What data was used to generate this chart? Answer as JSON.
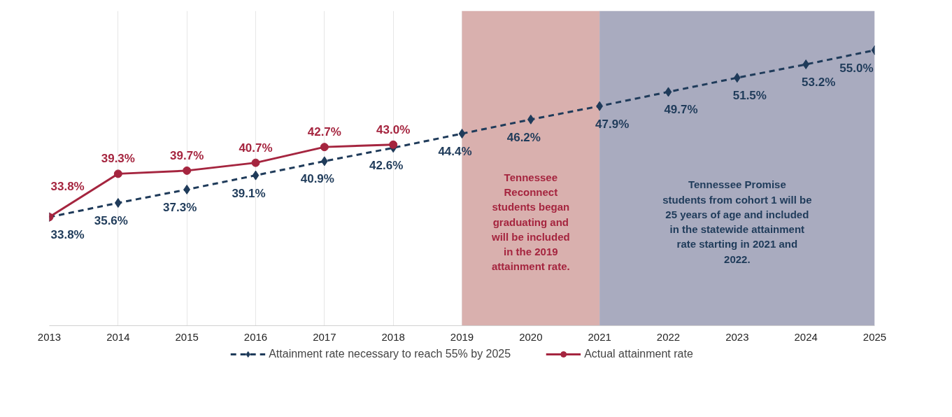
{
  "chart_data": {
    "type": "line",
    "x": [
      2013,
      2014,
      2015,
      2016,
      2017,
      2018,
      2019,
      2020,
      2021,
      2022,
      2023,
      2024,
      2025
    ],
    "series": [
      {
        "name": "Attainment rate necessary to reach 55% by 2025",
        "color": "#1f3b5a",
        "marker": "diamond",
        "line_style": "dashed",
        "values": [
          33.8,
          35.6,
          37.3,
          39.1,
          40.9,
          42.6,
          44.4,
          46.2,
          47.9,
          49.7,
          51.5,
          53.2,
          55.0
        ],
        "value_labels": [
          "33.8%",
          "35.6%",
          "37.3%",
          "39.1%",
          "40.9%",
          "42.6%",
          "44.4%",
          "46.2%",
          "47.9%",
          "49.7%",
          "51.5%",
          "53.2%",
          "55.0%"
        ]
      },
      {
        "name": "Actual attainment rate",
        "color": "#a5253f",
        "marker": "circle",
        "line_style": "solid",
        "values": [
          33.8,
          39.3,
          39.7,
          40.7,
          42.7,
          43.0,
          null,
          null,
          null,
          null,
          null,
          null,
          null
        ],
        "value_labels": [
          "33.8%",
          "39.3%",
          "39.7%",
          "40.7%",
          "42.7%",
          "43.0%",
          null,
          null,
          null,
          null,
          null,
          null,
          null
        ]
      }
    ],
    "xlim": [
      2013,
      2025
    ],
    "xticks": [
      2013,
      2014,
      2015,
      2016,
      2017,
      2018,
      2019,
      2020,
      2021,
      2022,
      2023,
      2024,
      2025
    ],
    "ylim": [
      20,
      60
    ],
    "tick_labels": "x",
    "grid": "x",
    "legend": "bottom",
    "bands": [
      {
        "axis": "x",
        "from": 2019,
        "to": 2021,
        "color": "#d9b0ae",
        "label": "Tennessee\nReconnect\nstudents began\ngraduating and\nwill be included\nin the 2019\nattainment rate."
      },
      {
        "axis": "x",
        "from": 2021,
        "to": 2025,
        "color": "#a9abbf",
        "label": "Tennessee Promise\nstudents from cohort 1 will be\n25 years of age and included\nin the statewide attainment\nrate starting in 2021 and\n2022."
      }
    ]
  }
}
